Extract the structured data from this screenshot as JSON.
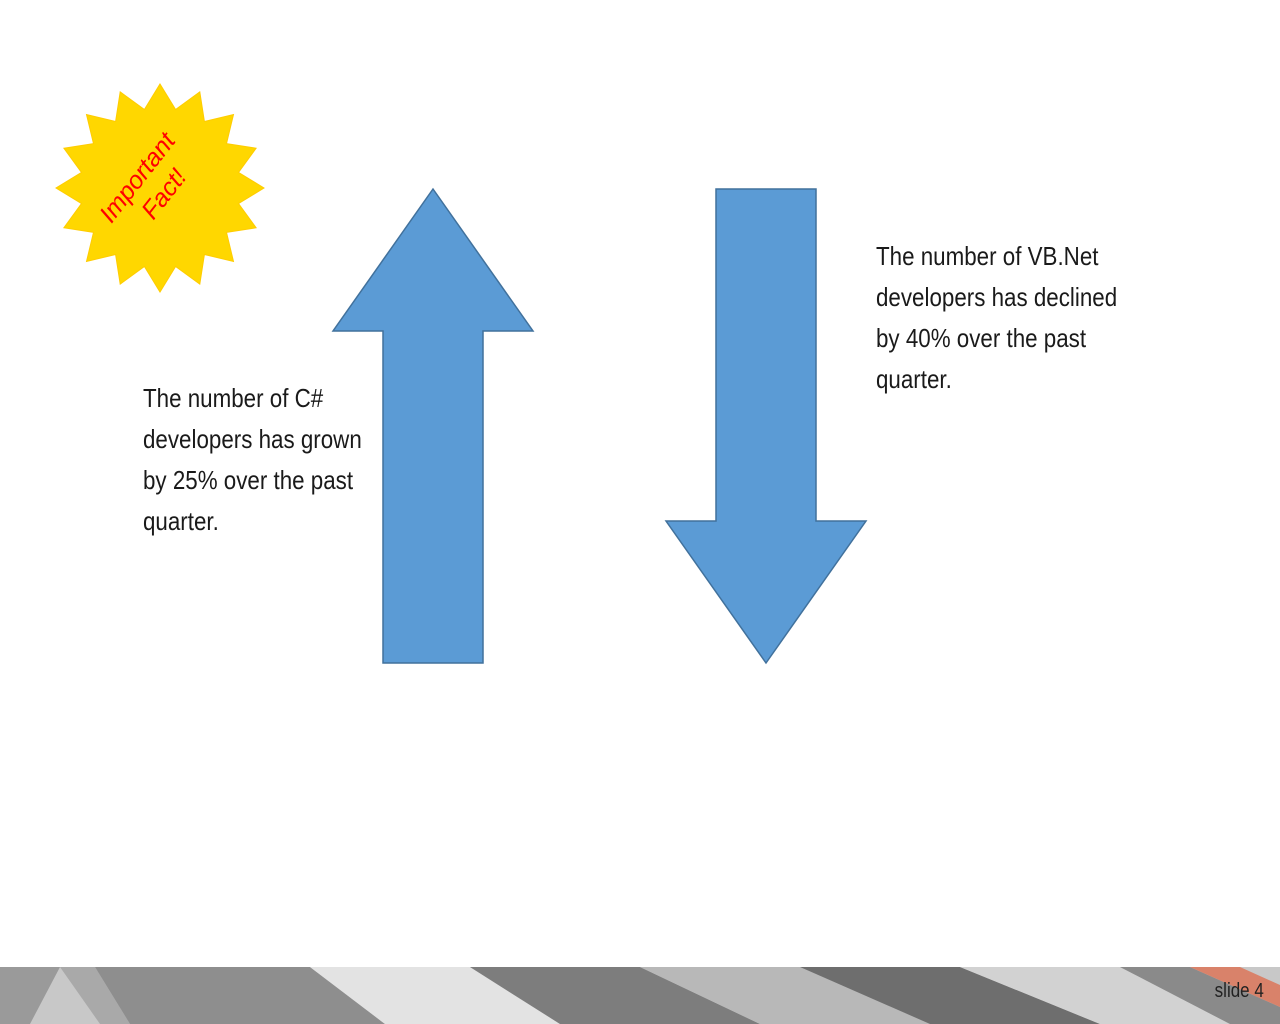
{
  "slide": {
    "burst_text_line1": "Important",
    "burst_text_line2": "Fact!",
    "left_text_lines": [
      "The number of C#",
      "developers has grown",
      "by 25% over the past",
      "quarter."
    ],
    "right_text_lines": [
      "The number of VB.Net",
      "developers has declined",
      "by 40% over the past",
      "quarter."
    ],
    "slide_number": "slide 4"
  },
  "colors": {
    "arrow_fill": "#5b9bd5",
    "arrow_stroke": "#41719c",
    "burst_fill": "#ffd700",
    "burst_stroke": "#ffcc00",
    "burst_text": "#ff0000"
  },
  "icons": {
    "up_arrow": "up-arrow-icon",
    "down_arrow": "down-arrow-icon",
    "burst": "starburst-icon"
  }
}
